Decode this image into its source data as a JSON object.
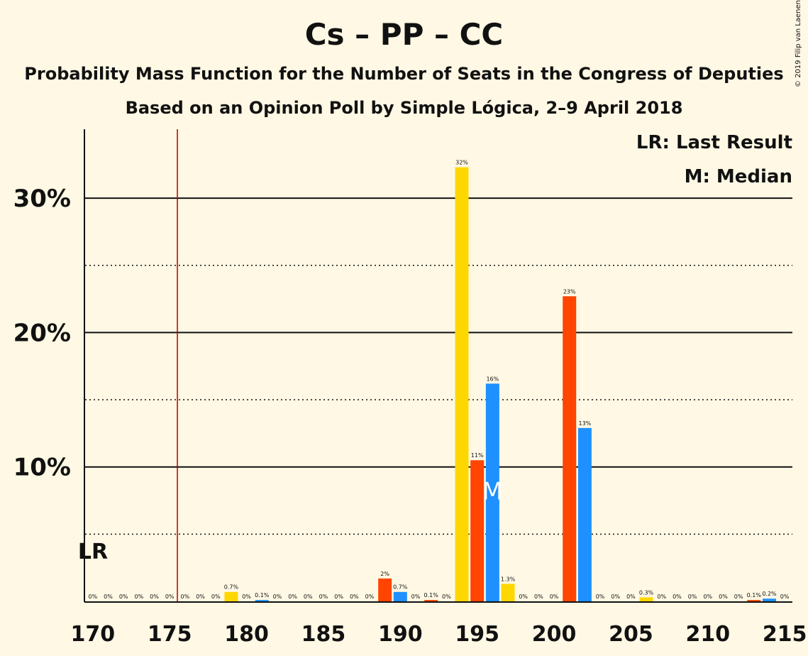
{
  "title": "Cs – PP – CC",
  "subtitle1": "Probability Mass Function for the Number of Seats in the Congress of Deputies",
  "subtitle2": "Based on an Opinion Poll by Simple Lógica, 2–9 April 2018",
  "copyright": "© 2019 Filip van Laenen",
  "legend": {
    "last_result": "LR: Last Result",
    "median": "M: Median"
  },
  "colors": {
    "background": "#fff8e4",
    "cs": "#ffd700",
    "pp": "#ff4500",
    "cc": "#1e90ff",
    "last_result_line": "#b00000"
  },
  "chart_data": {
    "type": "bar",
    "xlabel": "",
    "ylabel": "",
    "xlim": [
      170,
      215
    ],
    "ylim": [
      0,
      35
    ],
    "x_ticks": [
      "170",
      "175",
      "180",
      "185",
      "190",
      "195",
      "200",
      "205",
      "210",
      "215"
    ],
    "y_ticks": [
      "10%",
      "20%",
      "30%"
    ],
    "grid": "solid lines at 10%, 20%, 30%; dotted lines at 5%, 15%, 25%",
    "last_result": {
      "seat": 176,
      "label": "LR"
    },
    "median": {
      "seat": 196,
      "label": "M"
    },
    "bars": [
      {
        "x": 170,
        "value": 0,
        "label": "0%",
        "party": "cs"
      },
      {
        "x": 171,
        "value": 0,
        "label": "0%",
        "party": "pp"
      },
      {
        "x": 172,
        "value": 0,
        "label": "0%",
        "party": "cc"
      },
      {
        "x": 173,
        "value": 0,
        "label": "0%",
        "party": "cs"
      },
      {
        "x": 174,
        "value": 0,
        "label": "0%",
        "party": "pp"
      },
      {
        "x": 175,
        "value": 0,
        "label": "0%",
        "party": "cc"
      },
      {
        "x": 176,
        "value": 0,
        "label": "0%",
        "party": "cs"
      },
      {
        "x": 177,
        "value": 0,
        "label": "0%",
        "party": "pp"
      },
      {
        "x": 178,
        "value": 0,
        "label": "0%",
        "party": "cc"
      },
      {
        "x": 179,
        "value": 0.7,
        "label": "0.7%",
        "party": "cs"
      },
      {
        "x": 180,
        "value": 0,
        "label": "0%",
        "party": "pp"
      },
      {
        "x": 181,
        "value": 0.1,
        "label": "0.1%",
        "party": "cc"
      },
      {
        "x": 182,
        "value": 0,
        "label": "0%",
        "party": "cs"
      },
      {
        "x": 183,
        "value": 0,
        "label": "0%",
        "party": "pp"
      },
      {
        "x": 184,
        "value": 0,
        "label": "0%",
        "party": "cc"
      },
      {
        "x": 185,
        "value": 0,
        "label": "0%",
        "party": "cs"
      },
      {
        "x": 186,
        "value": 0,
        "label": "0%",
        "party": "pp"
      },
      {
        "x": 187,
        "value": 0,
        "label": "0%",
        "party": "cc"
      },
      {
        "x": 188,
        "value": 0,
        "label": "0%",
        "party": "cs"
      },
      {
        "x": 189,
        "value": 1.7,
        "label": "2%",
        "party": "pp"
      },
      {
        "x": 190,
        "value": 0.7,
        "label": "0.7%",
        "party": "cc"
      },
      {
        "x": 191,
        "value": 0,
        "label": "0%",
        "party": "cs"
      },
      {
        "x": 192,
        "value": 0.1,
        "label": "0.1%",
        "party": "pp"
      },
      {
        "x": 193,
        "value": 0,
        "label": "0%",
        "party": "cc"
      },
      {
        "x": 194,
        "value": 32.3,
        "label": "32%",
        "party": "cs"
      },
      {
        "x": 195,
        "value": 10.5,
        "label": "11%",
        "party": "pp"
      },
      {
        "x": 196,
        "value": 16.2,
        "label": "16%",
        "party": "cc"
      },
      {
        "x": 197,
        "value": 1.3,
        "label": "1.3%",
        "party": "cs"
      },
      {
        "x": 198,
        "value": 0,
        "label": "0%",
        "party": "pp"
      },
      {
        "x": 199,
        "value": 0,
        "label": "0%",
        "party": "cc"
      },
      {
        "x": 200,
        "value": 0,
        "label": "0%",
        "party": "cs"
      },
      {
        "x": 201,
        "value": 22.7,
        "label": "23%",
        "party": "pp"
      },
      {
        "x": 202,
        "value": 12.9,
        "label": "13%",
        "party": "cc"
      },
      {
        "x": 203,
        "value": 0,
        "label": "0%",
        "party": "cs"
      },
      {
        "x": 204,
        "value": 0,
        "label": "0%",
        "party": "pp"
      },
      {
        "x": 205,
        "value": 0,
        "label": "0%",
        "party": "cc"
      },
      {
        "x": 206,
        "value": 0.3,
        "label": "0.3%",
        "party": "cs"
      },
      {
        "x": 207,
        "value": 0,
        "label": "0%",
        "party": "pp"
      },
      {
        "x": 208,
        "value": 0,
        "label": "0%",
        "party": "cc"
      },
      {
        "x": 209,
        "value": 0,
        "label": "0%",
        "party": "cs"
      },
      {
        "x": 210,
        "value": 0,
        "label": "0%",
        "party": "pp"
      },
      {
        "x": 211,
        "value": 0,
        "label": "0%",
        "party": "cc"
      },
      {
        "x": 212,
        "value": 0,
        "label": "0%",
        "party": "cs"
      },
      {
        "x": 213,
        "value": 0.1,
        "label": "0.1%",
        "party": "pp"
      },
      {
        "x": 214,
        "value": 0.2,
        "label": "0.2%",
        "party": "cc"
      },
      {
        "x": 215,
        "value": 0,
        "label": "0%",
        "party": "cs"
      }
    ]
  }
}
